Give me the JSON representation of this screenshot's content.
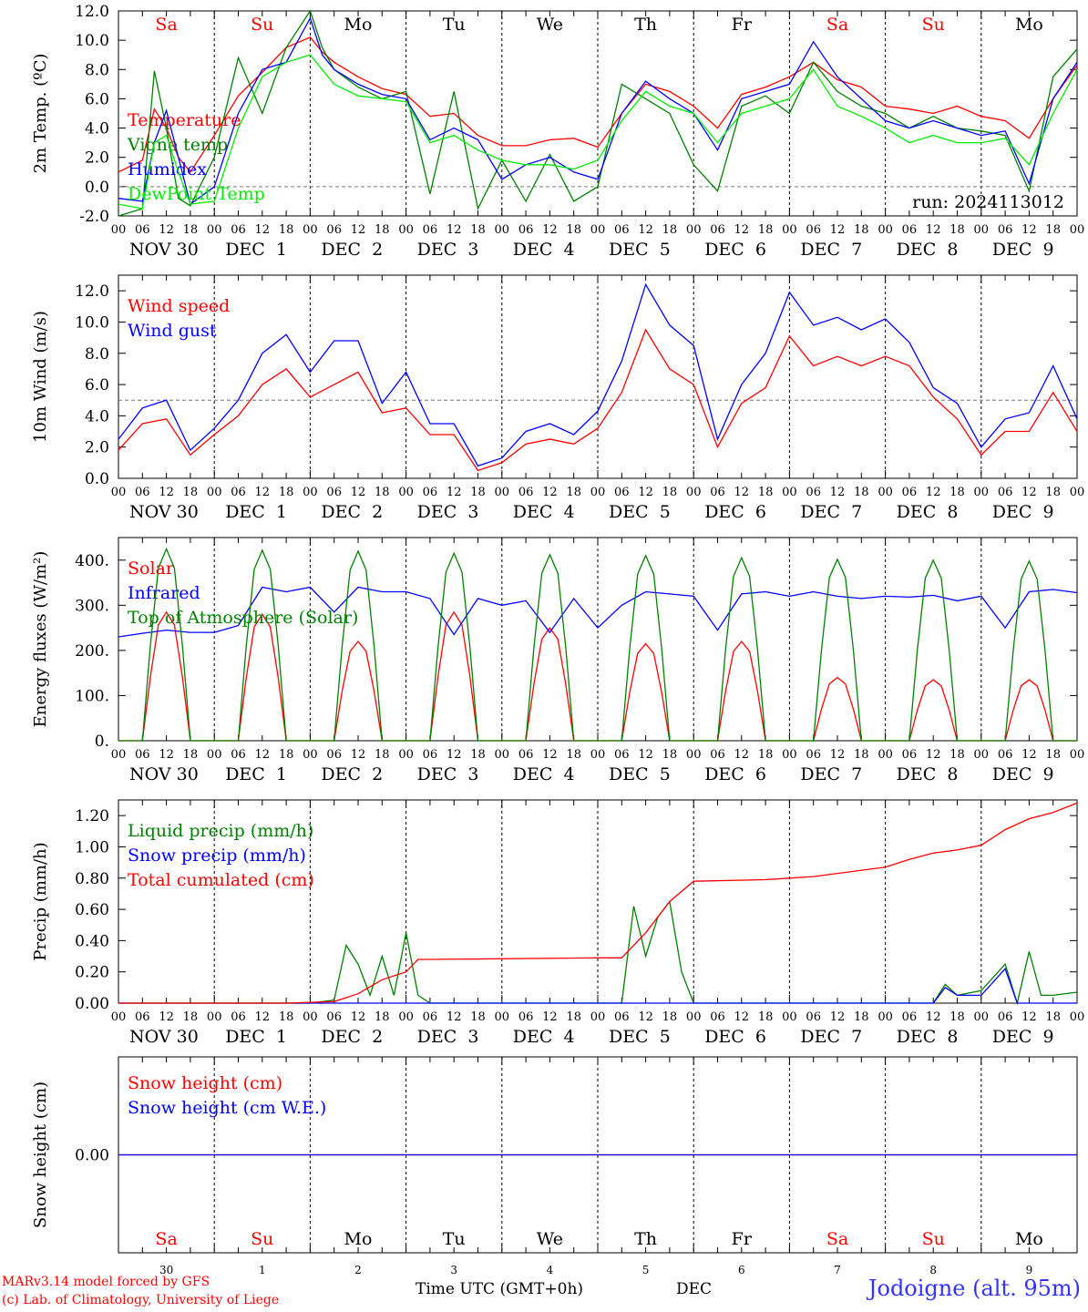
{
  "run_label": "run: 2024113012",
  "model_credit": "MARv3.14 model forced by GFS",
  "lab_credit": "(c) Lab. of Climatology, University of Liege",
  "station": "Jodoigne (alt. 95m)",
  "x_axis_title": "Time UTC (GMT+0h)",
  "month_label": "DEC",
  "hour_ticks": [
    "00",
    "06",
    "12",
    "18"
  ],
  "date_labels": [
    "NOV 30",
    "DEC  1",
    "DEC  2",
    "DEC  3",
    "DEC  4",
    "DEC  5",
    "DEC  6",
    "DEC  7",
    "DEC  8",
    "DEC  9"
  ],
  "day_numbers": [
    "30",
    "1",
    "2",
    "3",
    "4",
    "5",
    "6",
    "7",
    "8",
    "9"
  ],
  "weekdays": [
    "Sa",
    "Su",
    "Mo",
    "Tu",
    "We",
    "Th",
    "Fr",
    "Sa",
    "Su",
    "Mo"
  ],
  "weekend_color": "#ff0000",
  "weekday_color": "#000000",
  "chart_data": [
    {
      "type": "line",
      "ylabel": "2m Temp. (ºC)",
      "ylim": [
        -2,
        12
      ],
      "yticks": [
        "-2.0",
        "0.0",
        "2.0",
        "4.0",
        "6.0",
        "8.0",
        "10.0",
        "12.0"
      ],
      "ytick_values": [
        -2,
        0,
        2,
        4,
        6,
        8,
        10,
        12
      ],
      "ref_line": 0,
      "x_unit": "hours since 2024-11-30 00 UTC",
      "series": [
        {
          "name": "Temperature",
          "color": "#ff0000",
          "x": [
            0,
            6,
            9,
            12,
            15,
            18,
            24,
            30,
            36,
            42,
            48,
            51,
            54,
            60,
            66,
            72,
            78,
            84,
            90,
            96,
            102,
            108,
            114,
            120,
            126,
            132,
            138,
            144,
            150,
            156,
            162,
            168,
            174,
            180,
            186,
            192,
            198,
            204,
            210,
            216,
            222,
            228,
            234,
            240
          ],
          "values": [
            1.0,
            1.8,
            5.3,
            4.0,
            2.0,
            1.0,
            3.5,
            6.2,
            7.8,
            9.5,
            10.2,
            9.2,
            8.5,
            7.5,
            6.7,
            6.3,
            4.8,
            5.0,
            3.5,
            2.8,
            2.8,
            3.2,
            3.3,
            2.7,
            5.0,
            7.0,
            6.5,
            5.5,
            4.0,
            6.3,
            6.8,
            7.5,
            8.5,
            7.3,
            6.8,
            5.5,
            5.3,
            5.0,
            5.5,
            4.8,
            4.5,
            3.3,
            6.0,
            8.3
          ]
        },
        {
          "name": "Vigne temp",
          "color": "#008000",
          "x": [
            0,
            6,
            9,
            12,
            15,
            18,
            24,
            30,
            36,
            42,
            48,
            51,
            54,
            60,
            66,
            72,
            78,
            84,
            90,
            96,
            102,
            108,
            114,
            120,
            126,
            132,
            138,
            144,
            150,
            156,
            162,
            168,
            174,
            180,
            186,
            192,
            198,
            204,
            210,
            216,
            222,
            228,
            234,
            240
          ],
          "values": [
            -2.0,
            -1.5,
            7.9,
            4.0,
            -0.8,
            -1.3,
            2.0,
            8.8,
            5.0,
            9.5,
            12.0,
            9.5,
            8.0,
            6.8,
            6.0,
            6.5,
            -0.5,
            6.5,
            -1.5,
            1.8,
            -1.0,
            2.2,
            -1.0,
            0.0,
            7.0,
            6.0,
            5.0,
            1.5,
            -0.3,
            5.5,
            6.2,
            5.0,
            8.5,
            6.5,
            5.5,
            5.0,
            4.0,
            4.8,
            4.0,
            3.8,
            3.5,
            -0.3,
            7.5,
            9.4
          ]
        },
        {
          "name": "Humidex",
          "color": "#0000ff",
          "x": [
            0,
            6,
            9,
            12,
            15,
            18,
            24,
            30,
            36,
            42,
            48,
            51,
            54,
            60,
            66,
            72,
            78,
            84,
            90,
            96,
            102,
            108,
            114,
            120,
            126,
            132,
            138,
            144,
            150,
            156,
            162,
            168,
            174,
            180,
            186,
            192,
            198,
            204,
            210,
            216,
            222,
            228,
            234,
            240
          ],
          "values": [
            -0.8,
            -1.0,
            3.0,
            5.2,
            2.0,
            -1.2,
            0.0,
            5.0,
            8.0,
            8.5,
            11.5,
            9.0,
            8.0,
            7.0,
            6.3,
            6.0,
            3.2,
            4.0,
            3.2,
            0.5,
            1.5,
            2.0,
            1.0,
            0.5,
            5.0,
            7.2,
            6.0,
            5.0,
            2.5,
            6.0,
            6.5,
            7.0,
            9.9,
            7.5,
            6.0,
            4.5,
            4.0,
            4.5,
            4.0,
            3.5,
            3.8,
            0.2,
            6.0,
            8.5
          ]
        },
        {
          "name": "DewPoint Temp",
          "color": "#00ee00",
          "x": [
            0,
            6,
            9,
            12,
            15,
            18,
            24,
            30,
            36,
            42,
            48,
            51,
            54,
            60,
            66,
            72,
            78,
            84,
            90,
            96,
            102,
            108,
            114,
            120,
            126,
            132,
            138,
            144,
            150,
            156,
            162,
            168,
            174,
            180,
            186,
            192,
            198,
            204,
            210,
            216,
            222,
            228,
            234,
            240
          ],
          "values": [
            -1.2,
            -1.5,
            3.0,
            3.5,
            1.0,
            -1.2,
            -1.0,
            4.0,
            7.5,
            8.5,
            9.0,
            8.0,
            7.0,
            6.2,
            6.0,
            5.8,
            3.0,
            3.5,
            2.5,
            1.8,
            1.5,
            1.5,
            1.2,
            1.8,
            4.5,
            6.5,
            5.5,
            5.0,
            3.0,
            5.0,
            5.5,
            6.0,
            8.0,
            5.5,
            4.8,
            4.0,
            3.0,
            3.5,
            3.0,
            3.0,
            3.3,
            1.5,
            5.0,
            8.0
          ]
        }
      ]
    },
    {
      "type": "line",
      "ylabel": "10m Wind (m/s)",
      "ylim": [
        0,
        13
      ],
      "yticks": [
        "0.0",
        "2.0",
        "4.0",
        "6.0",
        "8.0",
        "10.0",
        "12.0"
      ],
      "ytick_values": [
        0,
        2,
        4,
        6,
        8,
        10,
        12
      ],
      "ref_line": 5,
      "x_unit": "hours since 2024-11-30 00 UTC",
      "series": [
        {
          "name": "Wind speed",
          "color": "#ff0000",
          "x": [
            0,
            6,
            12,
            18,
            24,
            30,
            36,
            42,
            48,
            54,
            60,
            66,
            72,
            78,
            84,
            90,
            96,
            102,
            108,
            114,
            120,
            126,
            132,
            138,
            144,
            150,
            156,
            162,
            168,
            174,
            180,
            186,
            192,
            198,
            204,
            210,
            216,
            222,
            228,
            234,
            240
          ],
          "values": [
            1.8,
            3.5,
            3.8,
            1.5,
            2.8,
            4.0,
            6.0,
            7.0,
            5.2,
            6.0,
            6.8,
            4.2,
            4.5,
            2.8,
            2.8,
            0.5,
            1.0,
            2.2,
            2.5,
            2.2,
            3.2,
            5.5,
            9.5,
            7.0,
            6.0,
            2.0,
            4.8,
            5.8,
            9.1,
            7.2,
            7.8,
            7.2,
            7.8,
            7.2,
            5.2,
            3.8,
            1.5,
            3.0,
            3.0,
            5.5,
            3.0
          ]
        },
        {
          "name": "Wind gust",
          "color": "#0000ff",
          "x": [
            0,
            6,
            12,
            18,
            24,
            30,
            36,
            42,
            48,
            54,
            60,
            66,
            72,
            78,
            84,
            90,
            96,
            102,
            108,
            114,
            120,
            126,
            132,
            138,
            144,
            150,
            156,
            162,
            168,
            174,
            180,
            186,
            192,
            198,
            204,
            210,
            216,
            222,
            228,
            234,
            240
          ],
          "values": [
            2.5,
            4.5,
            5.0,
            1.8,
            3.2,
            5.0,
            8.0,
            9.2,
            6.8,
            8.8,
            8.8,
            4.8,
            6.8,
            3.5,
            3.5,
            0.8,
            1.3,
            3.0,
            3.5,
            2.8,
            4.3,
            7.5,
            12.4,
            9.8,
            8.5,
            2.5,
            6.0,
            8.0,
            11.9,
            9.8,
            10.3,
            9.5,
            10.2,
            8.7,
            5.8,
            4.8,
            2.0,
            3.8,
            4.2,
            7.2,
            3.8
          ]
        }
      ]
    },
    {
      "type": "line",
      "ylabel": "Energy fluxes (W/m²)",
      "ylim": [
        0,
        450
      ],
      "yticks": [
        "0.",
        "100.",
        "200.",
        "300.",
        "400."
      ],
      "ytick_values": [
        0,
        100,
        200,
        300,
        400
      ],
      "x_unit": "hours since 2024-11-30 00 UTC",
      "series": [
        {
          "name": "Solar",
          "color": "#ff0000",
          "peak_hour": [
            12,
            36,
            60,
            84,
            108,
            132,
            156,
            180,
            204,
            228
          ],
          "peak_value": [
            285,
            280,
            220,
            285,
            250,
            215,
            220,
            140,
            135,
            135
          ]
        },
        {
          "name": "Infrared",
          "color": "#0000ff",
          "x": [
            0,
            6,
            12,
            18,
            24,
            30,
            36,
            42,
            48,
            54,
            60,
            66,
            72,
            78,
            84,
            90,
            96,
            102,
            108,
            114,
            120,
            126,
            132,
            138,
            144,
            150,
            156,
            162,
            168,
            174,
            180,
            186,
            192,
            198,
            204,
            210,
            216,
            222,
            228,
            234,
            240
          ],
          "values": [
            230,
            238,
            245,
            240,
            240,
            255,
            340,
            330,
            340,
            285,
            340,
            330,
            330,
            315,
            235,
            315,
            300,
            310,
            240,
            315,
            250,
            300,
            330,
            325,
            320,
            245,
            325,
            330,
            320,
            330,
            320,
            315,
            320,
            318,
            322,
            310,
            320,
            250,
            330,
            335,
            328
          ]
        },
        {
          "name": "Top of Atmosphere (Solar)",
          "color": "#008000",
          "peak_hour": [
            12,
            36,
            60,
            84,
            108,
            132,
            156,
            180,
            204,
            228
          ],
          "peak_value": [
            425,
            422,
            420,
            415,
            412,
            410,
            405,
            402,
            400,
            398
          ]
        }
      ]
    },
    {
      "type": "line",
      "ylabel": "Precip (mm/h)",
      "ylim": [
        0,
        1.3
      ],
      "yticks": [
        "0.00",
        "0.20",
        "0.40",
        "0.60",
        "0.80",
        "1.00",
        "1.20"
      ],
      "ytick_values": [
        0,
        0.2,
        0.4,
        0.6,
        0.8,
        1.0,
        1.2
      ],
      "x_unit": "hours since 2024-11-30 00 UTC",
      "series": [
        {
          "name": "Liquid precip (mm/h)",
          "color": "#008000",
          "x": [
            0,
            42,
            48,
            54,
            57,
            60,
            63,
            66,
            69,
            72,
            75,
            78,
            126,
            129,
            132,
            135,
            138,
            141,
            144,
            150,
            204,
            207,
            210,
            216,
            222,
            225,
            228,
            231,
            234,
            240
          ],
          "values": [
            0,
            0,
            0,
            0.02,
            0.37,
            0.25,
            0.05,
            0.3,
            0.05,
            0.45,
            0.05,
            0,
            0,
            0.62,
            0.3,
            0.55,
            0.65,
            0.2,
            0,
            0,
            0,
            0.12,
            0.05,
            0.08,
            0.25,
            0,
            0.33,
            0.05,
            0.05,
            0.07
          ]
        },
        {
          "name": "Snow precip (mm/h)",
          "color": "#0000ff",
          "x": [
            0,
            150,
            204,
            207,
            210,
            216,
            222,
            225,
            228,
            240
          ],
          "values": [
            0,
            0,
            0,
            0.1,
            0.05,
            0.05,
            0.22,
            0,
            0,
            0
          ]
        },
        {
          "name": "Total cumulated (cm)",
          "color": "#ff0000",
          "x": [
            0,
            42,
            54,
            60,
            66,
            72,
            75,
            78,
            120,
            126,
            132,
            138,
            144,
            162,
            168,
            174,
            180,
            192,
            198,
            204,
            210,
            216,
            222,
            228,
            234,
            240
          ],
          "values": [
            0,
            0,
            0.01,
            0.06,
            0.15,
            0.2,
            0.28,
            0.28,
            0.29,
            0.29,
            0.45,
            0.65,
            0.78,
            0.79,
            0.8,
            0.81,
            0.83,
            0.87,
            0.92,
            0.96,
            0.98,
            1.01,
            1.11,
            1.18,
            1.22,
            1.28
          ]
        }
      ]
    },
    {
      "type": "line",
      "ylabel": "Snow height (cm)",
      "yticks": [
        "0.00"
      ],
      "ytick_values": [
        0
      ],
      "ylim": [
        -1,
        1
      ],
      "x_unit": "hours since 2024-11-30 00 UTC",
      "series": [
        {
          "name": "Snow height (cm)",
          "color": "#ff0000",
          "x": [
            0,
            240
          ],
          "values": [
            0,
            0
          ]
        },
        {
          "name": "Snow height (cm W.E.)",
          "color": "#0000ff",
          "x": [
            0,
            240
          ],
          "values": [
            0,
            0
          ]
        }
      ]
    }
  ]
}
